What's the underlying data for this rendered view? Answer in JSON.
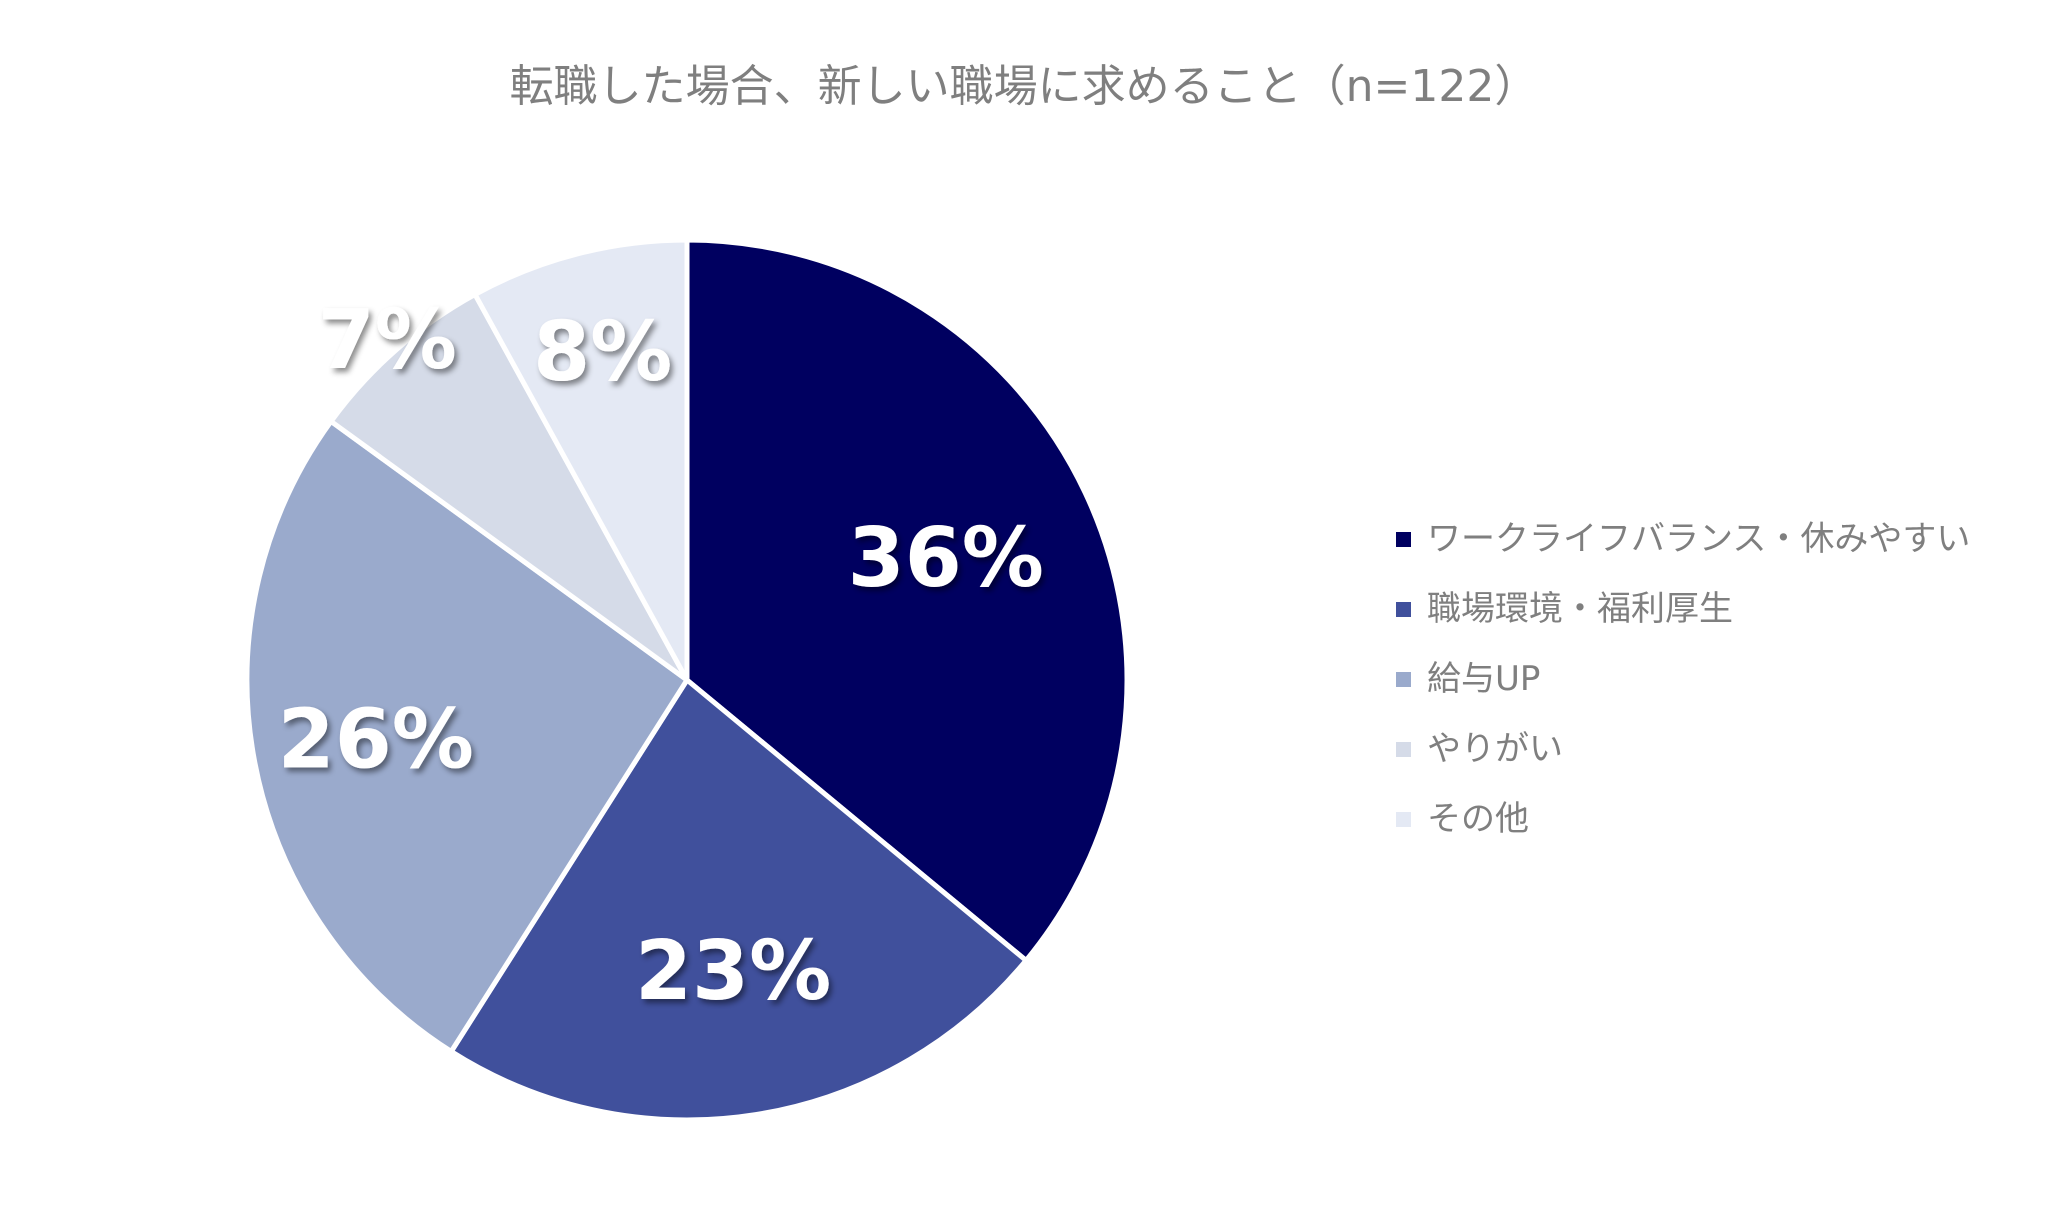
{
  "chart_data": {
    "type": "pie",
    "title": "転職した場合、新しい職場に求めること（n=122）",
    "categories": [
      "ワークライフバランス・休みやすい",
      "職場環境・福利厚生",
      "給与UP",
      "やりがい",
      "その他"
    ],
    "values": [
      36,
      23,
      26,
      7,
      8
    ],
    "labels": [
      "36%",
      "23%",
      "26%",
      "7%",
      "8%"
    ],
    "colors": [
      "#000060",
      "#40509c",
      "#9aaacc",
      "#d5dbe8",
      "#e4e9f4"
    ],
    "label_colors": [
      "#ffffff",
      "#ffffff",
      "#ffffff",
      "#ffffff",
      "#ffffff"
    ],
    "legend_position": "right",
    "start_angle_deg": 0,
    "direction": "clockwise"
  }
}
